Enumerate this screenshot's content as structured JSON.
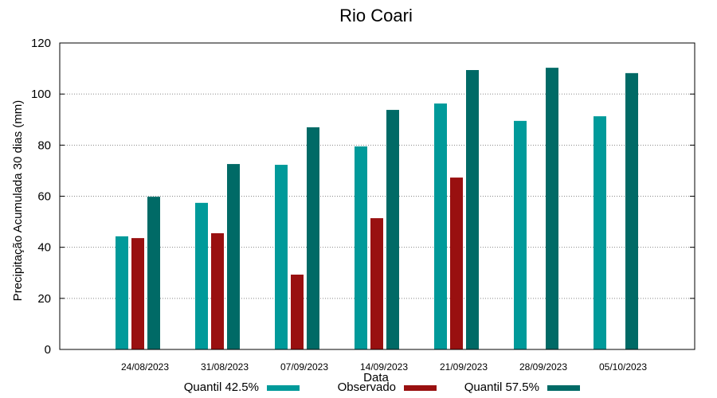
{
  "chart_data": {
    "type": "bar",
    "title": "Rio Coari",
    "xlabel": "Data",
    "ylabel": "Precipitação Acumulada 30 dias (mm)",
    "ylim": [
      0,
      120
    ],
    "yticks": [
      0,
      20,
      40,
      60,
      80,
      100,
      120
    ],
    "grid": true,
    "legend_placement": "bottom",
    "categories": [
      "24/08/2023",
      "31/08/2023",
      "07/09/2023",
      "14/09/2023",
      "21/09/2023",
      "28/09/2023",
      "05/10/2023"
    ],
    "series": [
      {
        "name": "Quantil 42.5%",
        "color": "#009a9a",
        "values": [
          44.3,
          57.4,
          72.3,
          79.5,
          96.3,
          89.5,
          91.3
        ]
      },
      {
        "name": "Observado",
        "color": "#991010",
        "values": [
          43.6,
          45.5,
          29.3,
          51.4,
          67.3,
          null,
          null
        ]
      },
      {
        "name": "Quantil 57.5%",
        "color": "#006a66",
        "values": [
          59.8,
          72.6,
          87.0,
          93.8,
          109.4,
          110.3,
          108.2
        ]
      }
    ]
  }
}
